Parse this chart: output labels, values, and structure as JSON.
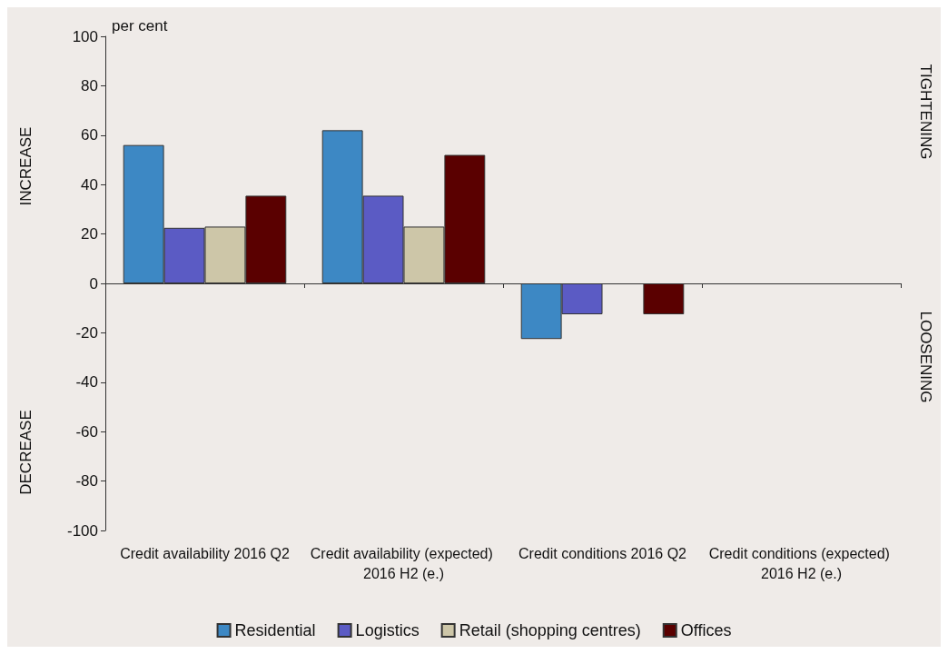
{
  "chart_data": {
    "type": "bar",
    "categories": [
      "Credit availability 2016 Q2",
      "Credit availability (expected) 2016 H2 (e.)",
      "Credit conditions 2016 Q2",
      "Credit conditions (expected) 2016 H2 (e.)"
    ],
    "series": [
      {
        "name": "Residential",
        "color": "#3d88c4",
        "values": [
          56,
          62,
          -22.5,
          null
        ]
      },
      {
        "name": "Logistics",
        "color": "#5b5bc4",
        "values": [
          22.5,
          35.5,
          -12.5,
          null
        ]
      },
      {
        "name": "Retail (shopping centres)",
        "color": "#cdc6a8",
        "values": [
          23,
          23,
          null,
          null
        ]
      },
      {
        "name": "Offices",
        "color": "#5a0000",
        "values": [
          35.5,
          52,
          -12.5,
          null
        ]
      }
    ],
    "ylim": [
      -100,
      100
    ],
    "yticks": [
      -100,
      -80,
      -60,
      -40,
      -20,
      0,
      20,
      40,
      60,
      80,
      100
    ],
    "legend": "bottom",
    "annotations": [
      "per cent",
      "INCREASE",
      "DECREASE",
      "TIGHTENING",
      "LOOSENING"
    ]
  }
}
